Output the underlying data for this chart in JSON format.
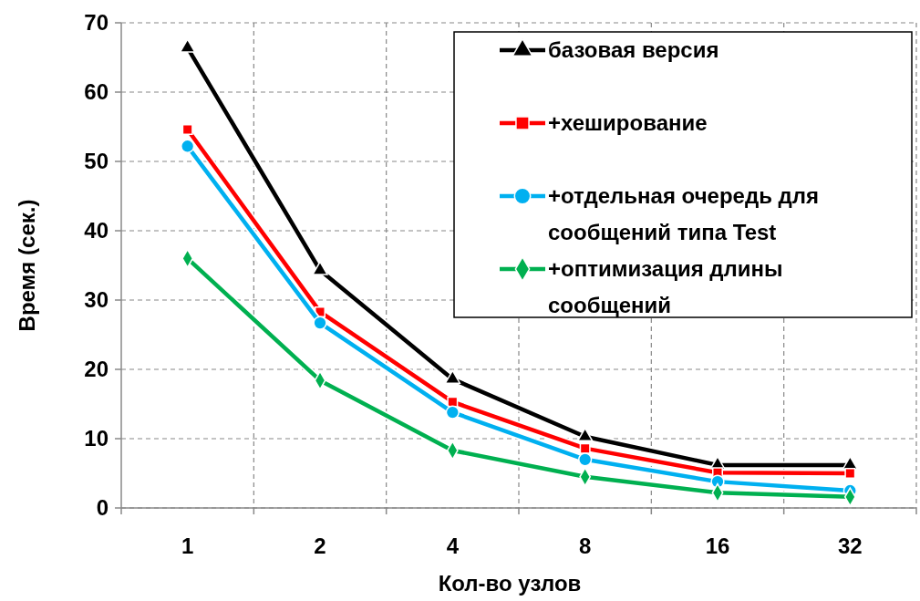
{
  "chart_data": {
    "type": "line",
    "xlabel": "Кол-во узлов",
    "ylabel": "Время (сек.)",
    "categories": [
      "1",
      "2",
      "4",
      "8",
      "16",
      "32"
    ],
    "ylim": [
      0,
      70
    ],
    "yticks": [
      0,
      10,
      20,
      30,
      40,
      50,
      60,
      70
    ],
    "grid": true,
    "legend": "top right",
    "series": [
      {
        "name": "базовая версия",
        "color": "#000000",
        "marker": "triangle",
        "values": [
          66.4,
          34.3,
          18.6,
          10.3,
          6.2,
          6.2
        ]
      },
      {
        "name": "+хеширование",
        "color": "#ff0000",
        "marker": "square",
        "values": [
          54.6,
          28.3,
          15.3,
          8.6,
          5.1,
          5.0
        ]
      },
      {
        "name": "+отдельная очередь для сообщений типа Test",
        "color": "#00b0f0",
        "marker": "circle",
        "values": [
          52.2,
          26.7,
          13.8,
          7.0,
          3.8,
          2.5
        ]
      },
      {
        "name": "+оптимизация длины сообщений",
        "color": "#00b050",
        "marker": "diamond",
        "values": [
          36.0,
          18.4,
          8.3,
          4.5,
          2.2,
          1.6
        ]
      }
    ]
  }
}
